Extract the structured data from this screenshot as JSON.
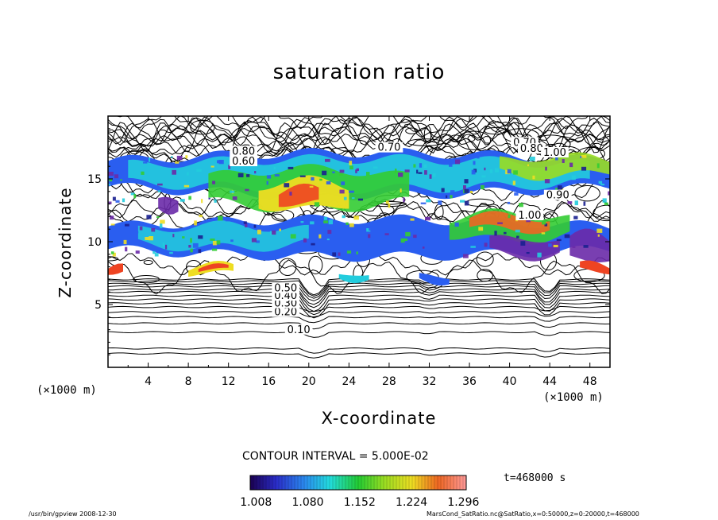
{
  "chart_data": {
    "type": "heatmap",
    "title": "saturation ratio",
    "xlabel": "X-coordinate",
    "ylabel": "Z-coordinate",
    "x_unit_label": "(×1000 m)",
    "y_unit_label": "(×1000 m)",
    "xlim": [
      0,
      50
    ],
    "ylim": [
      0,
      20
    ],
    "x_ticks": [
      "4",
      "8",
      "12",
      "16",
      "20",
      "24",
      "28",
      "32",
      "36",
      "40",
      "44",
      "48"
    ],
    "y_ticks": [
      "5",
      "10",
      "15"
    ],
    "contour_labels": [
      {
        "text": "0.10",
        "x": 19,
        "y": 2.8
      },
      {
        "text": "0.20",
        "x": 17.7,
        "y": 4.2
      },
      {
        "text": "0.30",
        "x": 17.7,
        "y": 4.9
      },
      {
        "text": "0.40",
        "x": 17.7,
        "y": 5.5
      },
      {
        "text": "0.50",
        "x": 17.7,
        "y": 6.1
      },
      {
        "text": "0.70",
        "x": 41.5,
        "y": 17.7
      },
      {
        "text": "0.70",
        "x": 28,
        "y": 17.3
      },
      {
        "text": "0.80",
        "x": 13.5,
        "y": 17.0
      },
      {
        "text": "0.80",
        "x": 42.2,
        "y": 17.2
      },
      {
        "text": "0.90",
        "x": 44.8,
        "y": 13.5
      },
      {
        "text": "1.00",
        "x": 44.5,
        "y": 16.9
      },
      {
        "text": "1.00",
        "x": 42,
        "y": 11.9
      },
      {
        "text": "0.60",
        "x": 13.5,
        "y": 16.2
      }
    ],
    "colorbar": {
      "ticks": [
        "1.008",
        "1.080",
        "1.152",
        "1.224",
        "1.296"
      ],
      "range": [
        1.0,
        1.3
      ]
    },
    "grid": false
  },
  "contour_interval": "CONTOUR INTERVAL = 5.000E-02",
  "time_label": "t=468000 s",
  "footer": {
    "left": "/usr/bin/gpview  2008-12-30",
    "right": "MarsCond_SatRatio.nc@SatRatio,x=0:50000,z=0:20000,t=468000"
  }
}
